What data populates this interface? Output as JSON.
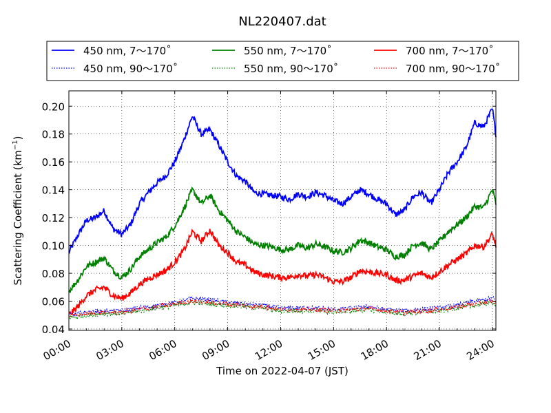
{
  "chart_data": {
    "type": "line",
    "title": "NL220407.dat",
    "xlabel": "Time on 2022-04-07 (JST)",
    "ylabel": "Scattering Coefficient (km",
    "ylabel_unit_exp": "−1",
    "ylabel_close": ")",
    "x_ticks": [
      "00:00",
      "03:00",
      "06:00",
      "09:00",
      "12:00",
      "15:00",
      "18:00",
      "21:00",
      "24:00"
    ],
    "x_unit": "hours",
    "xlim": [
      0,
      24.2
    ],
    "ylim": [
      0.039,
      0.211
    ],
    "y_ticks": [
      0.04,
      0.06,
      0.08,
      0.1,
      0.12,
      0.14,
      0.16,
      0.18,
      0.2
    ],
    "y_tick_labels": [
      "0.04",
      "0.06",
      "0.08",
      "0.10",
      "0.12",
      "0.14",
      "0.16",
      "0.18",
      "0.20"
    ],
    "grid": true,
    "legend_position": "top",
    "series": [
      {
        "name": "450 nm, 7～170˚",
        "color": "#0000ff",
        "style": "solid",
        "x": [
          0,
          0.5,
          1.0,
          1.5,
          2.0,
          2.5,
          3.0,
          3.5,
          4.0,
          4.5,
          5.0,
          5.5,
          6.0,
          6.5,
          7.0,
          7.5,
          8.0,
          8.5,
          9.0,
          9.5,
          10.0,
          10.5,
          11.0,
          11.5,
          12.0,
          12.5,
          13.0,
          13.5,
          14.0,
          14.5,
          15.0,
          15.5,
          16.0,
          16.5,
          17.0,
          17.5,
          18.0,
          18.5,
          19.0,
          19.5,
          20.0,
          20.5,
          21.0,
          21.5,
          22.0,
          22.5,
          23.0,
          23.5,
          24.0,
          24.2
        ],
        "y": [
          0.095,
          0.107,
          0.118,
          0.12,
          0.125,
          0.112,
          0.108,
          0.115,
          0.13,
          0.138,
          0.145,
          0.15,
          0.16,
          0.175,
          0.193,
          0.18,
          0.183,
          0.172,
          0.16,
          0.15,
          0.146,
          0.138,
          0.137,
          0.136,
          0.135,
          0.133,
          0.137,
          0.135,
          0.138,
          0.136,
          0.132,
          0.13,
          0.135,
          0.14,
          0.137,
          0.133,
          0.13,
          0.122,
          0.125,
          0.135,
          0.138,
          0.13,
          0.14,
          0.152,
          0.16,
          0.17,
          0.188,
          0.185,
          0.198,
          0.18
        ]
      },
      {
        "name": "550 nm, 7～170˚",
        "color": "#008000",
        "style": "solid",
        "x": [
          0,
          0.5,
          1.0,
          1.5,
          2.0,
          2.5,
          3.0,
          3.5,
          4.0,
          4.5,
          5.0,
          5.5,
          6.0,
          6.5,
          7.0,
          7.5,
          8.0,
          8.5,
          9.0,
          9.5,
          10.0,
          10.5,
          11.0,
          11.5,
          12.0,
          12.5,
          13.0,
          13.5,
          14.0,
          14.5,
          15.0,
          15.5,
          16.0,
          16.5,
          17.0,
          17.5,
          18.0,
          18.5,
          19.0,
          19.5,
          20.0,
          20.5,
          21.0,
          21.5,
          22.0,
          22.5,
          23.0,
          23.5,
          24.0,
          24.2
        ],
        "y": [
          0.067,
          0.075,
          0.085,
          0.088,
          0.091,
          0.082,
          0.077,
          0.083,
          0.092,
          0.097,
          0.102,
          0.106,
          0.114,
          0.126,
          0.14,
          0.13,
          0.136,
          0.125,
          0.118,
          0.11,
          0.106,
          0.101,
          0.1,
          0.099,
          0.097,
          0.097,
          0.1,
          0.098,
          0.101,
          0.099,
          0.096,
          0.095,
          0.098,
          0.104,
          0.102,
          0.099,
          0.097,
          0.092,
          0.093,
          0.1,
          0.102,
          0.097,
          0.103,
          0.11,
          0.115,
          0.12,
          0.128,
          0.127,
          0.14,
          0.13
        ]
      },
      {
        "name": "700 nm, 7～170˚",
        "color": "#ff0000",
        "style": "solid",
        "x": [
          0,
          0.5,
          1.0,
          1.5,
          2.0,
          2.5,
          3.0,
          3.5,
          4.0,
          4.5,
          5.0,
          5.5,
          6.0,
          6.5,
          7.0,
          7.5,
          8.0,
          8.5,
          9.0,
          9.5,
          10.0,
          10.5,
          11.0,
          11.5,
          12.0,
          12.5,
          13.0,
          13.5,
          14.0,
          14.5,
          15.0,
          15.5,
          16.0,
          16.5,
          17.0,
          17.5,
          18.0,
          18.5,
          19.0,
          19.5,
          20.0,
          20.5,
          21.0,
          21.5,
          22.0,
          22.5,
          23.0,
          23.5,
          24.0,
          24.2
        ],
        "y": [
          0.05,
          0.056,
          0.064,
          0.068,
          0.07,
          0.064,
          0.062,
          0.066,
          0.072,
          0.076,
          0.079,
          0.082,
          0.088,
          0.096,
          0.11,
          0.103,
          0.111,
          0.1,
          0.095,
          0.088,
          0.086,
          0.081,
          0.079,
          0.078,
          0.077,
          0.077,
          0.079,
          0.078,
          0.079,
          0.077,
          0.074,
          0.074,
          0.077,
          0.082,
          0.081,
          0.08,
          0.079,
          0.075,
          0.075,
          0.078,
          0.08,
          0.077,
          0.081,
          0.086,
          0.09,
          0.094,
          0.1,
          0.099,
          0.108,
          0.1
        ]
      },
      {
        "name": "450 nm, 90～170˚",
        "color": "#0000ff",
        "style": "dotted",
        "x": [
          0,
          1.0,
          2.0,
          3.0,
          4.0,
          5.0,
          6.0,
          7.0,
          8.0,
          9.0,
          10.0,
          11.0,
          12.0,
          13.0,
          14.0,
          15.0,
          16.0,
          17.0,
          18.0,
          19.0,
          20.0,
          21.0,
          22.0,
          23.0,
          24.0,
          24.2
        ],
        "y": [
          0.05,
          0.052,
          0.053,
          0.053,
          0.055,
          0.057,
          0.059,
          0.062,
          0.061,
          0.059,
          0.058,
          0.057,
          0.055,
          0.055,
          0.055,
          0.054,
          0.055,
          0.056,
          0.054,
          0.053,
          0.054,
          0.055,
          0.057,
          0.06,
          0.062,
          0.061
        ]
      },
      {
        "name": "550 nm, 90～170˚",
        "color": "#008000",
        "style": "dotted",
        "x": [
          0,
          1.0,
          2.0,
          3.0,
          4.0,
          5.0,
          6.0,
          7.0,
          8.0,
          9.0,
          10.0,
          11.0,
          12.0,
          13.0,
          14.0,
          15.0,
          16.0,
          17.0,
          18.0,
          19.0,
          20.0,
          21.0,
          22.0,
          23.0,
          24.0,
          24.2
        ],
        "y": [
          0.048,
          0.05,
          0.051,
          0.051,
          0.053,
          0.055,
          0.057,
          0.059,
          0.058,
          0.057,
          0.056,
          0.055,
          0.053,
          0.053,
          0.053,
          0.052,
          0.053,
          0.054,
          0.052,
          0.051,
          0.052,
          0.053,
          0.055,
          0.057,
          0.059,
          0.058
        ]
      },
      {
        "name": "700 nm, 90～170˚",
        "color": "#ff0000",
        "style": "dotted",
        "x": [
          0,
          1.0,
          2.0,
          3.0,
          4.0,
          5.0,
          6.0,
          7.0,
          8.0,
          9.0,
          10.0,
          11.0,
          12.0,
          13.0,
          14.0,
          15.0,
          16.0,
          17.0,
          18.0,
          19.0,
          20.0,
          21.0,
          22.0,
          23.0,
          24.0,
          24.2
        ],
        "y": [
          0.049,
          0.051,
          0.052,
          0.052,
          0.054,
          0.056,
          0.058,
          0.06,
          0.059,
          0.058,
          0.057,
          0.056,
          0.054,
          0.054,
          0.054,
          0.053,
          0.054,
          0.055,
          0.053,
          0.052,
          0.053,
          0.054,
          0.056,
          0.058,
          0.06,
          0.059
        ]
      }
    ]
  }
}
